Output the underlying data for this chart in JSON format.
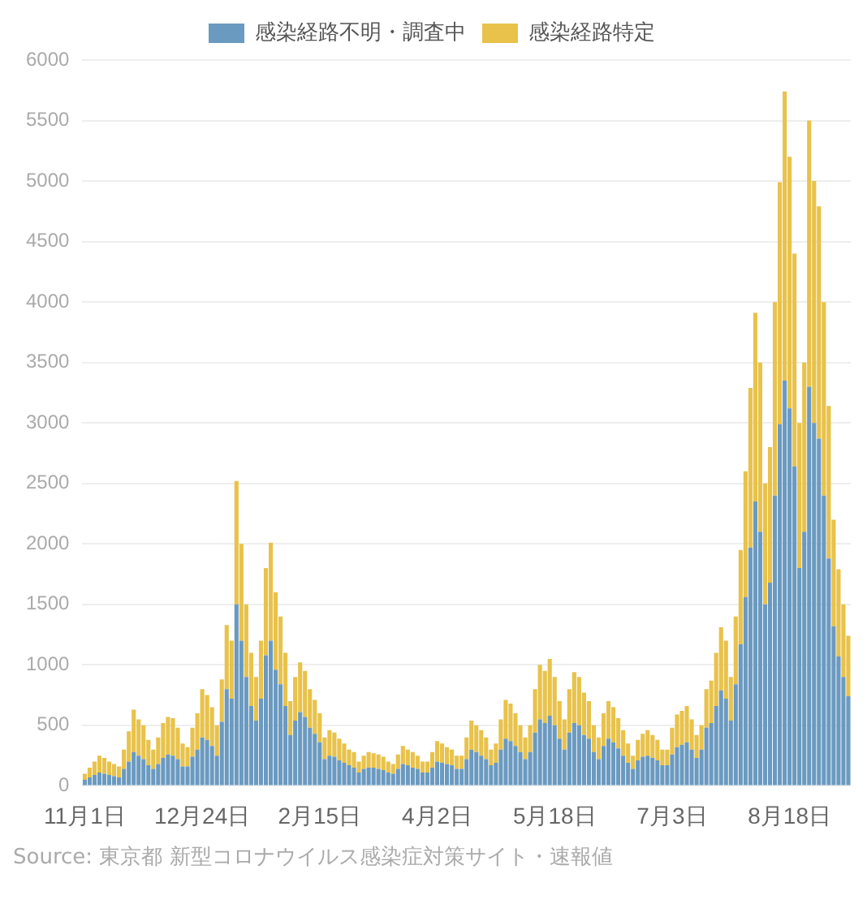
{
  "chart_data": {
    "type": "bar",
    "stacked": true,
    "legend": "top",
    "grid": "y",
    "categories": [
      "11月1日",
      null,
      null,
      null,
      null,
      null,
      null,
      null,
      null,
      null,
      null,
      null,
      null,
      null,
      null,
      null,
      null,
      null,
      null,
      null,
      null,
      null,
      null,
      null,
      "12月24日",
      null,
      null,
      null,
      null,
      null,
      null,
      null,
      null,
      null,
      null,
      null,
      null,
      null,
      null,
      null,
      null,
      null,
      null,
      null,
      null,
      null,
      null,
      null,
      "2月15日",
      null,
      null,
      null,
      null,
      null,
      null,
      null,
      null,
      null,
      null,
      null,
      null,
      null,
      null,
      null,
      null,
      null,
      null,
      null,
      null,
      null,
      null,
      null,
      "4月2日",
      null,
      null,
      null,
      null,
      null,
      null,
      null,
      null,
      null,
      null,
      null,
      null,
      null,
      null,
      null,
      null,
      null,
      null,
      null,
      null,
      null,
      null,
      null,
      "5月18日",
      null,
      null,
      null,
      null,
      null,
      null,
      null,
      null,
      null,
      null,
      null,
      null,
      null,
      null,
      null,
      null,
      null,
      null,
      null,
      null,
      null,
      null,
      null,
      "7月3日",
      null,
      null,
      null,
      null,
      null,
      null,
      null,
      null,
      null,
      null,
      null,
      null,
      null,
      null,
      null,
      null,
      null,
      null,
      null,
      null,
      null,
      null,
      null,
      "8月18日",
      null,
      null,
      null,
      null,
      null,
      null,
      null,
      null,
      null,
      null,
      null,
      null
    ],
    "ylim": [
      0,
      6000
    ],
    "yticks": [
      0,
      500,
      1000,
      1500,
      2000,
      2500,
      3000,
      3500,
      4000,
      4500,
      5000,
      5500,
      6000
    ],
    "series": [
      {
        "name": "感染経路不明・調査中",
        "color": "#6b9ac0",
        "values": [
          50,
          70,
          90,
          110,
          100,
          90,
          80,
          70,
          140,
          200,
          280,
          250,
          220,
          170,
          140,
          180,
          230,
          260,
          250,
          220,
          160,
          160,
          240,
          300,
          400,
          380,
          330,
          250,
          530,
          800,
          720,
          1500,
          1200,
          900,
          660,
          540,
          720,
          1080,
          1200,
          960,
          840,
          660,
          420,
          540,
          610,
          570,
          480,
          430,
          360,
          220,
          250,
          240,
          210,
          190,
          170,
          150,
          110,
          140,
          150,
          150,
          140,
          130,
          110,
          100,
          140,
          180,
          170,
          150,
          140,
          110,
          110,
          150,
          200,
          190,
          180,
          170,
          140,
          140,
          220,
          300,
          280,
          250,
          220,
          170,
          190,
          300,
          390,
          370,
          330,
          280,
          220,
          280,
          440,
          550,
          520,
          580,
          500,
          390,
          300,
          440,
          520,
          500,
          420,
          390,
          280,
          220,
          330,
          390,
          360,
          310,
          250,
          190,
          140,
          210,
          240,
          250,
          230,
          210,
          170,
          170,
          260,
          320,
          340,
          360,
          300,
          230,
          300,
          480,
          520,
          660,
          790,
          720,
          540,
          840,
          1170,
          1560,
          1970,
          2350,
          2100,
          1500,
          1680,
          2400,
          2990,
          3350,
          3120,
          2640,
          1800,
          2100,
          3300,
          3000,
          2870,
          2400,
          1880,
          1320,
          1070,
          900,
          740
        ]
      },
      {
        "name": "感染経路特定",
        "color": "#e8c24a",
        "values": [
          50,
          80,
          110,
          140,
          130,
          110,
          100,
          90,
          160,
          250,
          350,
          300,
          280,
          210,
          160,
          220,
          290,
          310,
          310,
          260,
          190,
          160,
          240,
          300,
          400,
          370,
          320,
          250,
          350,
          530,
          480,
          1020,
          800,
          600,
          440,
          360,
          480,
          720,
          810,
          640,
          560,
          440,
          280,
          360,
          410,
          380,
          320,
          280,
          240,
          180,
          210,
          200,
          180,
          160,
          130,
          130,
          90,
          110,
          130,
          120,
          120,
          110,
          90,
          80,
          120,
          150,
          130,
          130,
          110,
          90,
          90,
          130,
          170,
          160,
          140,
          130,
          110,
          110,
          180,
          240,
          220,
          210,
          180,
          130,
          160,
          250,
          320,
          310,
          270,
          220,
          180,
          220,
          360,
          450,
          430,
          470,
          400,
          310,
          250,
          360,
          420,
          400,
          350,
          310,
          220,
          180,
          270,
          310,
          290,
          250,
          210,
          160,
          110,
          170,
          190,
          210,
          190,
          170,
          130,
          130,
          220,
          270,
          280,
          300,
          250,
          190,
          200,
          320,
          350,
          440,
          520,
          480,
          360,
          560,
          780,
          1040,
          1320,
          1560,
          1400,
          1000,
          1120,
          1600,
          2000,
          2390,
          2080,
          1760,
          1200,
          1400,
          2200,
          2000,
          1920,
          1600,
          1260,
          880,
          720,
          600,
          500
        ]
      }
    ],
    "annotations": [
      "Source: 東京都 新型コロナウイルス感染症対策サイト・速報値"
    ]
  }
}
